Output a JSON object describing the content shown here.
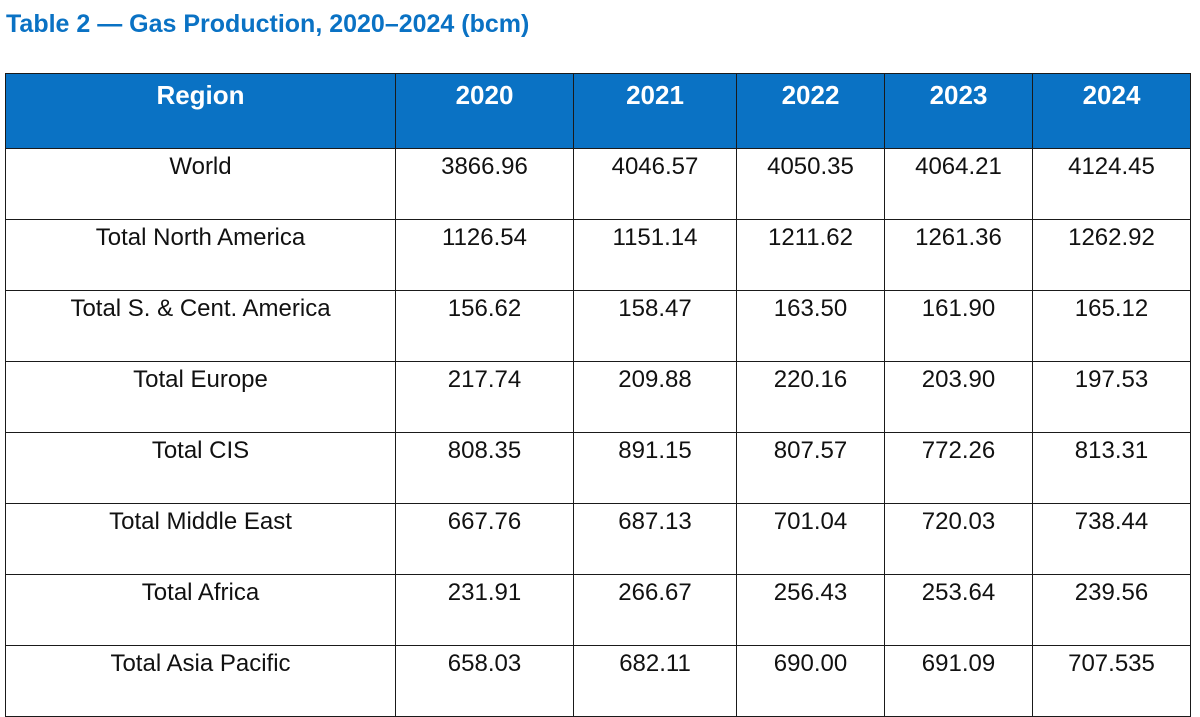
{
  "title": "Table 2 — Gas Production, 2020–2024 (bcm)",
  "chart_data": {
    "type": "table",
    "title": "Table 2 — Gas Production, 2020–2024 (bcm)",
    "columns": [
      "Region",
      "2020",
      "2021",
      "2022",
      "2023",
      "2024"
    ],
    "rows": [
      [
        "World",
        "3866.96",
        "4046.57",
        "4050.35",
        "4064.21",
        "4124.45"
      ],
      [
        "Total North America",
        "1126.54",
        "1151.14",
        "1211.62",
        "1261.36",
        "1262.92"
      ],
      [
        "Total S. & Cent. America",
        "156.62",
        "158.47",
        "163.50",
        "161.90",
        "165.12"
      ],
      [
        "Total Europe",
        "217.74",
        "209.88",
        "220.16",
        "203.90",
        "197.53"
      ],
      [
        "Total CIS",
        "808.35",
        "891.15",
        "807.57",
        "772.26",
        "813.31"
      ],
      [
        "Total Middle East",
        "667.76",
        "687.13",
        "701.04",
        "720.03",
        "738.44"
      ],
      [
        "Total Africa",
        "231.91",
        "266.67",
        "256.43",
        "253.64",
        "239.56"
      ],
      [
        "Total Asia Pacific",
        "658.03",
        "682.11",
        "690.00",
        "691.09",
        "707.535"
      ]
    ]
  },
  "colors": {
    "header_background": "#0a72c4",
    "header_text": "#ffffff",
    "title_text": "#0a72c4",
    "border": "#1a1a1a"
  }
}
